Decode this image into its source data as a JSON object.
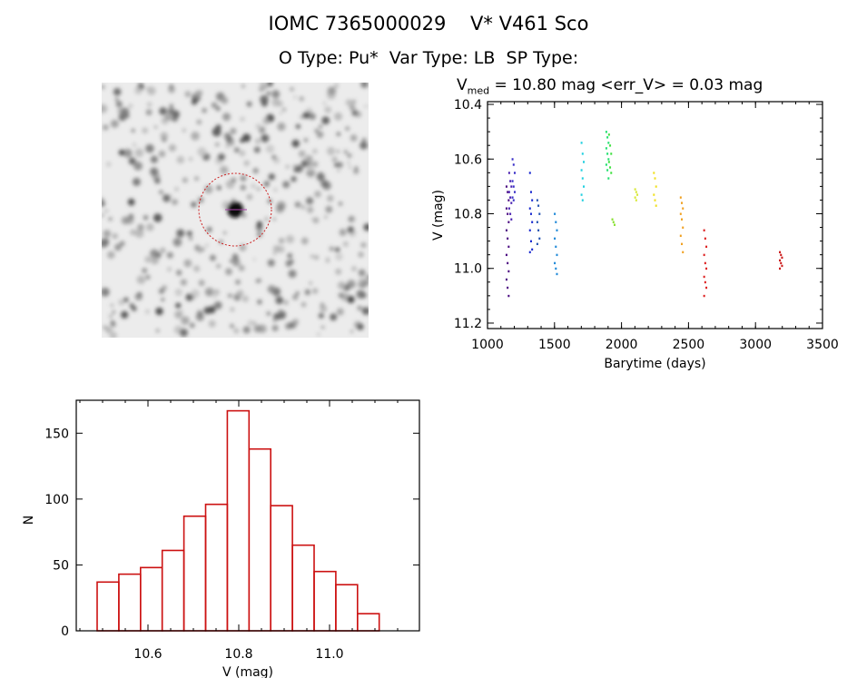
{
  "header": {
    "title": "IOMC 7365000029    V* V461 Sco",
    "types": "O Type: Pu*  Var Type: LB  SP Type:"
  },
  "image_panel": {
    "circle_color": "#cc2222"
  },
  "chart_data": [
    {
      "type": "scatter",
      "title_prefix": "V",
      "title_sub": "med",
      "title_rest": " = 10.80 mag <err_V> = 0.03 mag",
      "xlabel": "Barytime (days)",
      "ylabel": "V (mag)",
      "xlim": [
        1000,
        3500
      ],
      "ylim": [
        10.39,
        11.22
      ],
      "y_inverted": true,
      "xticks": [
        "1000",
        "1500",
        "2000",
        "2500",
        "3000",
        "3500"
      ],
      "yticks": [
        "10.4",
        "10.6",
        "10.8",
        "11.0",
        "11.2"
      ],
      "series": [
        {
          "x": 1150,
          "color": "#4a0a80",
          "values": [
            10.7,
            10.72,
            10.75,
            10.78,
            10.8,
            10.83,
            10.86,
            10.89,
            10.92,
            10.95,
            10.98,
            11.01,
            11.04,
            11.07,
            11.1
          ]
        },
        {
          "x": 1170,
          "color": "#4a20b0",
          "values": [
            10.65,
            10.68,
            10.7,
            10.72,
            10.74,
            10.76,
            10.78,
            10.8,
            10.82
          ]
        },
        {
          "x": 1195,
          "color": "#3a30c8",
          "values": [
            10.6,
            10.62,
            10.65,
            10.68,
            10.7,
            10.72,
            10.74,
            10.75
          ]
        },
        {
          "x": 1325,
          "color": "#1a2ad0",
          "values": [
            10.65,
            10.72,
            10.75,
            10.78,
            10.8,
            10.83,
            10.86,
            10.9,
            10.93,
            10.94
          ]
        },
        {
          "x": 1380,
          "color": "#2050b0",
          "values": [
            10.75,
            10.77,
            10.8,
            10.83,
            10.86,
            10.89,
            10.91
          ]
        },
        {
          "x": 1510,
          "color": "#1e88d8",
          "values": [
            10.8,
            10.83,
            10.86,
            10.89,
            10.92,
            10.95,
            10.98,
            11.0,
            11.02
          ]
        },
        {
          "x": 1710,
          "color": "#22d0e0",
          "values": [
            10.54,
            10.58,
            10.61,
            10.64,
            10.67,
            10.7,
            10.73,
            10.75
          ]
        },
        {
          "x": 1895,
          "color": "#22e070",
          "values": [
            10.5,
            10.52,
            10.54,
            10.56,
            10.58,
            10.6,
            10.62,
            10.64,
            10.67
          ]
        },
        {
          "x": 1915,
          "color": "#40e040",
          "values": [
            10.51,
            10.55,
            10.58,
            10.61,
            10.63,
            10.65
          ]
        },
        {
          "x": 1940,
          "color": "#88e030",
          "values": [
            10.82,
            10.83,
            10.84
          ]
        },
        {
          "x": 2110,
          "color": "#d8e838",
          "values": [
            10.71,
            10.72,
            10.73,
            10.74,
            10.75
          ]
        },
        {
          "x": 2250,
          "color": "#f0e020",
          "values": [
            10.65,
            10.67,
            10.7,
            10.73,
            10.75,
            10.77
          ]
        },
        {
          "x": 2450,
          "color": "#f0a020",
          "values": [
            10.74,
            10.76,
            10.78,
            10.8,
            10.82,
            10.85,
            10.88,
            10.91,
            10.94
          ]
        },
        {
          "x": 2625,
          "color": "#dd2020",
          "values": [
            10.86,
            10.89,
            10.92,
            10.95,
            10.98,
            11.0,
            11.03,
            11.05,
            11.07,
            11.1
          ]
        },
        {
          "x": 3190,
          "color": "#cc1818",
          "values": [
            10.94,
            10.95,
            10.96,
            10.97,
            10.98,
            10.99,
            11.0
          ]
        }
      ]
    },
    {
      "type": "bar",
      "subtype": "histogram",
      "xlabel": "V (mag)",
      "ylabel": "N",
      "xlim": [
        10.442,
        11.198
      ],
      "ylim": [
        0,
        175
      ],
      "xticks": [
        "10.6",
        "10.8",
        "11.0"
      ],
      "yticks": [
        "0",
        "50",
        "100",
        "150"
      ],
      "bin_start": 10.488,
      "bin_width": 0.0478,
      "values": [
        37,
        43,
        48,
        61,
        87,
        96,
        167,
        138,
        95,
        65,
        45,
        35,
        13
      ],
      "color": "#cc1111"
    }
  ]
}
